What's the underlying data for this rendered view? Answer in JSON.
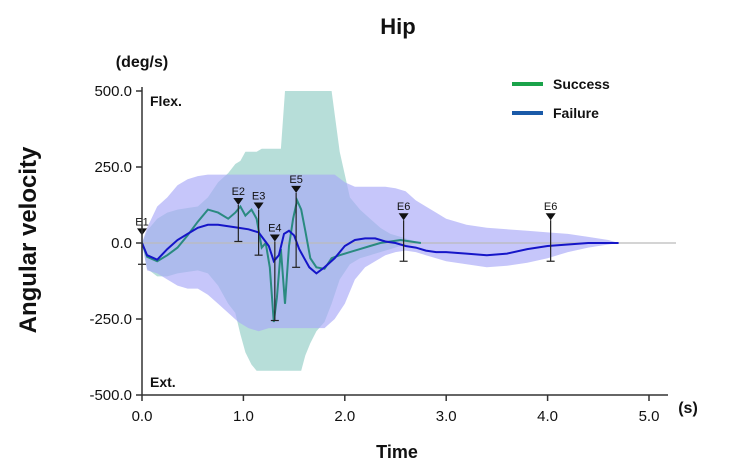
{
  "chart_data": {
    "type": "line",
    "title": "Hip",
    "ylabel": "Angular velocity",
    "xlabel": "Time",
    "y_unit": "(deg/s)",
    "x_unit": "(s)",
    "xlim": [
      0,
      5
    ],
    "ylim": [
      -500,
      500
    ],
    "x_ticks": [
      "0.0",
      "1.0",
      "2.0",
      "3.0",
      "4.0",
      "5.0"
    ],
    "y_ticks": [
      "500.0",
      "250.0",
      "0.0",
      "-250.0",
      "-500.0"
    ],
    "y_tick_values": [
      500,
      250,
      0,
      -250,
      -500
    ],
    "x_tick_values": [
      0,
      1,
      2,
      3,
      4,
      5
    ],
    "direction_labels": {
      "top": "Flex.",
      "bottom": "Ext."
    },
    "grid": false,
    "legend_position": "top-right",
    "legend": [
      {
        "name": "Success",
        "color": "#1aa34a"
      },
      {
        "name": "Failure",
        "color": "#1a5aa8"
      }
    ],
    "series": [
      {
        "name": "Success",
        "color": "#2a8a80",
        "band_color": "#9fd3cc",
        "x": [
          0.0,
          0.05,
          0.15,
          0.25,
          0.35,
          0.45,
          0.55,
          0.65,
          0.75,
          0.85,
          0.92,
          0.97,
          1.02,
          1.08,
          1.13,
          1.18,
          1.22,
          1.26,
          1.3,
          1.33,
          1.37,
          1.41,
          1.45,
          1.49,
          1.53,
          1.57,
          1.61,
          1.66,
          1.72,
          1.8,
          1.87,
          1.95,
          2.05,
          2.15,
          2.25,
          2.35,
          2.45,
          2.55,
          2.65,
          2.75
        ],
        "values": [
          0,
          -45,
          -60,
          -40,
          -15,
          25,
          70,
          110,
          100,
          80,
          100,
          120,
          90,
          110,
          80,
          -15,
          0,
          -80,
          -260,
          -180,
          -20,
          -200,
          -10,
          80,
          140,
          110,
          40,
          -50,
          -80,
          -85,
          -50,
          -40,
          -30,
          -20,
          -10,
          0,
          5,
          10,
          5,
          0
        ],
        "lower": [
          0,
          -85,
          -110,
          -110,
          -100,
          -95,
          -90,
          -100,
          -140,
          -200,
          -230,
          -300,
          -360,
          -400,
          -420,
          -420,
          -420,
          -420,
          -420,
          -420,
          -420,
          -420,
          -420,
          -420,
          -420,
          -420,
          -370,
          -330,
          -290,
          -260,
          -200,
          -120,
          -70,
          -50,
          -40,
          -30,
          -20,
          -10,
          -5,
          0
        ],
        "upper": [
          0,
          40,
          80,
          100,
          110,
          115,
          120,
          150,
          200,
          230,
          260,
          270,
          300,
          300,
          300,
          310,
          310,
          310,
          310,
          310,
          310,
          500,
          500,
          500,
          500,
          500,
          500,
          500,
          500,
          500,
          500,
          300,
          150,
          110,
          80,
          50,
          30,
          20,
          10,
          0
        ]
      },
      {
        "name": "Failure",
        "color": "#1515c8",
        "band_color": "#a8a8f8",
        "x": [
          0.0,
          0.05,
          0.15,
          0.25,
          0.35,
          0.45,
          0.55,
          0.65,
          0.75,
          0.85,
          0.95,
          1.05,
          1.15,
          1.25,
          1.3,
          1.35,
          1.4,
          1.45,
          1.5,
          1.55,
          1.6,
          1.65,
          1.72,
          1.8,
          1.9,
          2.0,
          2.1,
          2.2,
          2.3,
          2.4,
          2.5,
          2.6,
          2.7,
          2.8,
          2.9,
          3.0,
          3.2,
          3.4,
          3.6,
          3.8,
          4.0,
          4.2,
          4.4,
          4.6,
          4.7
        ],
        "values": [
          0,
          -40,
          -55,
          -20,
          10,
          30,
          50,
          60,
          60,
          55,
          50,
          45,
          35,
          -10,
          -60,
          -40,
          30,
          40,
          25,
          -20,
          -50,
          -80,
          -100,
          -80,
          -50,
          -10,
          10,
          15,
          15,
          5,
          0,
          -10,
          -15,
          -25,
          -30,
          -30,
          -35,
          -40,
          -35,
          -20,
          -10,
          -5,
          0,
          0,
          0
        ],
        "lower": [
          0,
          -90,
          -100,
          -120,
          -140,
          -150,
          -150,
          -170,
          -200,
          -230,
          -260,
          -280,
          -290,
          -280,
          -280,
          -280,
          -280,
          -280,
          -280,
          -280,
          -280,
          -280,
          -280,
          -280,
          -250,
          -200,
          -120,
          -80,
          -60,
          -40,
          -30,
          -25,
          -30,
          -40,
          -50,
          -60,
          -70,
          -80,
          -75,
          -65,
          -50,
          -30,
          -15,
          -5,
          0
        ],
        "upper": [
          0,
          50,
          120,
          150,
          190,
          210,
          220,
          225,
          225,
          225,
          225,
          225,
          225,
          225,
          225,
          225,
          225,
          225,
          225,
          225,
          225,
          225,
          225,
          225,
          225,
          200,
          185,
          185,
          185,
          185,
          180,
          170,
          140,
          120,
          100,
          80,
          60,
          50,
          45,
          40,
          35,
          30,
          20,
          10,
          0
        ]
      }
    ],
    "events": [
      {
        "label": "E1",
        "x": 0.0,
        "y": 25,
        "lo": -70,
        "hi": 60
      },
      {
        "label": "E2",
        "x": 0.95,
        "y": 125,
        "lo": 5,
        "hi": 125
      },
      {
        "label": "E3",
        "x": 1.15,
        "y": 110,
        "lo": -40,
        "hi": 110
      },
      {
        "label": "E4",
        "x": 1.31,
        "y": 5,
        "lo": -255,
        "hi": 5
      },
      {
        "label": "E5",
        "x": 1.52,
        "y": 165,
        "lo": -80,
        "hi": 165
      },
      {
        "label": "E6",
        "x": 2.58,
        "y": 75,
        "lo": -60,
        "hi": 75
      },
      {
        "label": "E6",
        "x": 4.03,
        "y": 75,
        "lo": -60,
        "hi": 75
      }
    ]
  }
}
